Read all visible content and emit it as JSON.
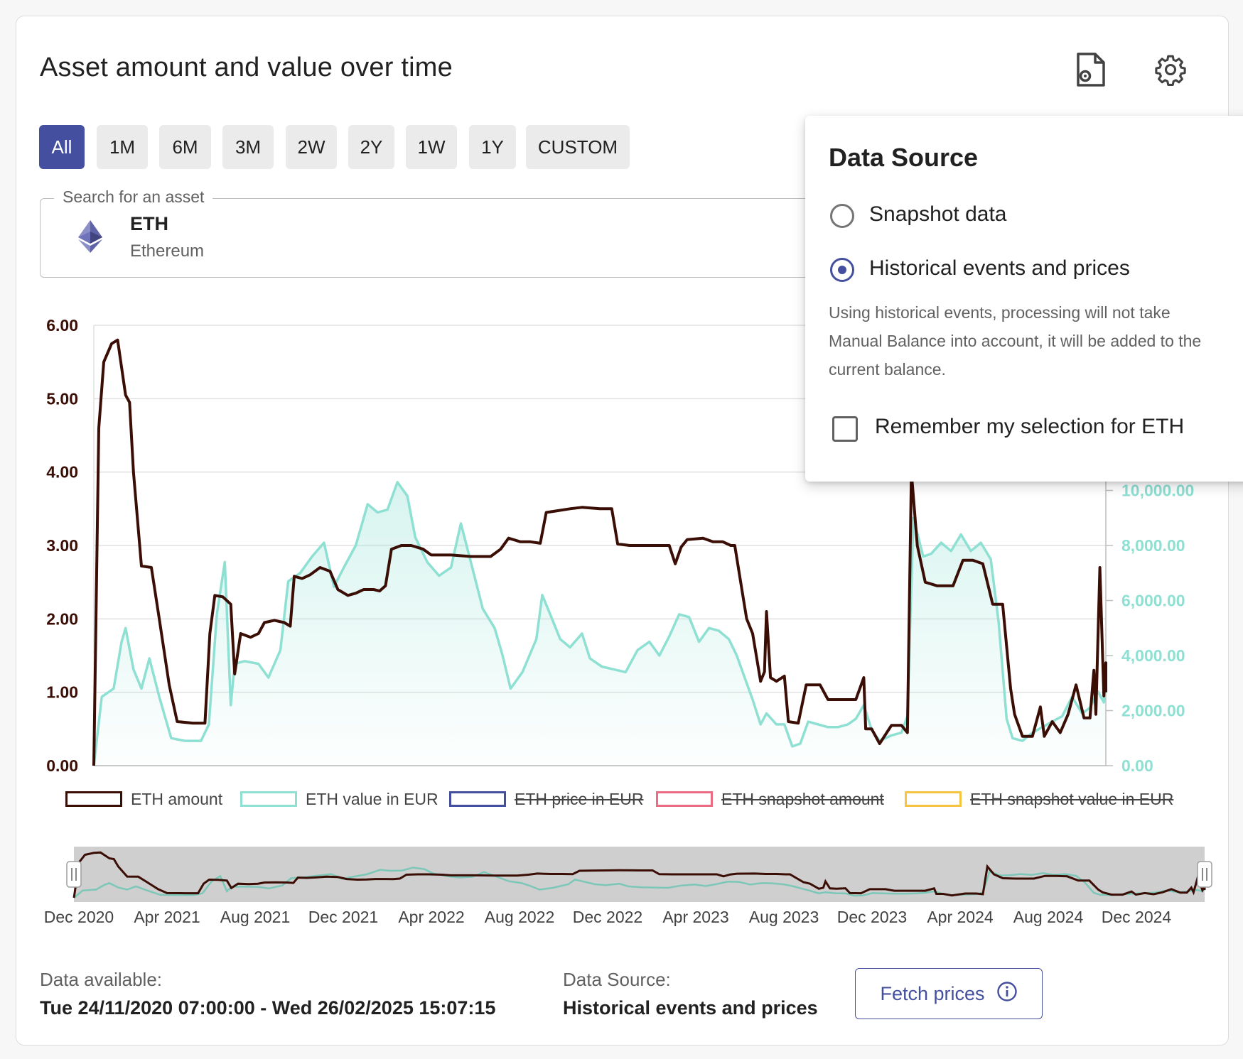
{
  "card": {
    "title": "Asset amount and value over time",
    "icons": {
      "export": "file-settings-icon",
      "settings": "gear-icon"
    }
  },
  "ranges": [
    {
      "label": "All",
      "active": true
    },
    {
      "label": "1M",
      "active": false
    },
    {
      "label": "6M",
      "active": false
    },
    {
      "label": "3M",
      "active": false
    },
    {
      "label": "2W",
      "active": false
    },
    {
      "label": "2Y",
      "active": false
    },
    {
      "label": "1W",
      "active": false
    },
    {
      "label": "1Y",
      "active": false
    },
    {
      "label": "CUSTOM",
      "active": false
    }
  ],
  "search": {
    "label": "Search for an asset",
    "asset_symbol": "ETH",
    "asset_name": "Ethereum",
    "asset_icon": "ethereum-icon"
  },
  "popup": {
    "title": "Data Source",
    "options": [
      {
        "label": "Snapshot data",
        "selected": false
      },
      {
        "label": "Historical events and prices",
        "selected": true
      }
    ],
    "hint": "Using historical events, processing will not take Manual Balance into account, it will be added to the current balance.",
    "remember_label": "Remember my selection for ETH",
    "remember_checked": false
  },
  "chart_data": {
    "type": "line",
    "left_axis_ticks": [
      "0.00",
      "1.00",
      "2.00",
      "3.00",
      "4.00",
      "5.00",
      "6.00"
    ],
    "right_axis_ticks": [
      "0.00",
      "2,000.00",
      "4,000.00",
      "6,000.00",
      "8,000.00",
      "10,000.00"
    ],
    "ylim_left": [
      0,
      6
    ],
    "ylim_right": [
      0,
      16000
    ],
    "x_ticks": [
      "Dec 2020",
      "Apr 2021",
      "Aug 2021",
      "Dec 2021",
      "Apr 2022",
      "Aug 2022",
      "Dec 2022",
      "Apr 2023",
      "Aug 2023",
      "Dec 2023",
      "Apr 2024",
      "Aug 2024",
      "Dec 2024"
    ],
    "x_domain": [
      0,
      51
    ],
    "series": [
      {
        "name": "ETH amount",
        "color": "#3a0d05",
        "axis": "left",
        "visible": true,
        "points": [
          [
            0,
            0
          ],
          [
            0.25,
            4.6
          ],
          [
            0.5,
            5.5
          ],
          [
            0.9,
            5.75
          ],
          [
            1.2,
            5.8
          ],
          [
            1.6,
            5.05
          ],
          [
            1.8,
            4.95
          ],
          [
            2.0,
            4.0
          ],
          [
            2.4,
            2.72
          ],
          [
            2.9,
            2.7
          ],
          [
            3.3,
            2.0
          ],
          [
            3.8,
            1.1
          ],
          [
            4.2,
            0.6
          ],
          [
            5.0,
            0.58
          ],
          [
            5.6,
            0.58
          ],
          [
            5.85,
            1.8
          ],
          [
            6.1,
            2.32
          ],
          [
            6.5,
            2.3
          ],
          [
            6.9,
            2.2
          ],
          [
            7.1,
            1.25
          ],
          [
            7.4,
            1.8
          ],
          [
            7.9,
            1.75
          ],
          [
            8.3,
            1.8
          ],
          [
            8.6,
            1.95
          ],
          [
            9.1,
            1.98
          ],
          [
            9.6,
            1.95
          ],
          [
            9.9,
            1.9
          ],
          [
            10.1,
            2.58
          ],
          [
            10.5,
            2.55
          ],
          [
            10.9,
            2.6
          ],
          [
            11.4,
            2.7
          ],
          [
            11.9,
            2.65
          ],
          [
            12.3,
            2.4
          ],
          [
            12.8,
            2.32
          ],
          [
            13.2,
            2.35
          ],
          [
            13.6,
            2.4
          ],
          [
            14.1,
            2.4
          ],
          [
            14.4,
            2.38
          ],
          [
            14.7,
            2.45
          ],
          [
            15.0,
            2.95
          ],
          [
            15.5,
            3.0
          ],
          [
            16.0,
            3.0
          ],
          [
            16.6,
            2.95
          ],
          [
            17.0,
            2.87
          ],
          [
            18.0,
            2.87
          ],
          [
            19.0,
            2.85
          ],
          [
            20.0,
            2.85
          ],
          [
            20.5,
            2.95
          ],
          [
            20.9,
            3.1
          ],
          [
            21.5,
            3.05
          ],
          [
            22.0,
            3.05
          ],
          [
            22.5,
            3.03
          ],
          [
            22.8,
            3.45
          ],
          [
            23.3,
            3.47
          ],
          [
            24.0,
            3.5
          ],
          [
            24.6,
            3.52
          ],
          [
            25.5,
            3.5
          ],
          [
            26.1,
            3.5
          ],
          [
            26.4,
            3.02
          ],
          [
            27.0,
            3.0
          ],
          [
            28.0,
            3.0
          ],
          [
            29.0,
            3.0
          ],
          [
            29.3,
            2.75
          ],
          [
            29.6,
            2.98
          ],
          [
            29.9,
            3.08
          ],
          [
            30.7,
            3.1
          ],
          [
            31.2,
            3.05
          ],
          [
            31.7,
            3.05
          ],
          [
            32.1,
            3.0
          ],
          [
            32.3,
            3.0
          ],
          [
            32.6,
            2.5
          ],
          [
            32.9,
            2.0
          ],
          [
            33.2,
            1.8
          ],
          [
            33.6,
            1.15
          ],
          [
            33.8,
            1.28
          ],
          [
            33.9,
            2.1
          ],
          [
            34.1,
            1.2
          ],
          [
            34.4,
            1.15
          ],
          [
            34.8,
            1.22
          ],
          [
            35.0,
            0.6
          ],
          [
            35.5,
            0.58
          ],
          [
            35.9,
            1.1
          ],
          [
            36.6,
            1.1
          ],
          [
            37.0,
            0.9
          ],
          [
            37.5,
            0.9
          ],
          [
            38.0,
            0.9
          ],
          [
            38.4,
            0.9
          ],
          [
            38.8,
            1.2
          ],
          [
            38.9,
            0.5
          ],
          [
            39.2,
            0.5
          ],
          [
            39.6,
            0.3
          ],
          [
            40.2,
            0.55
          ],
          [
            40.7,
            0.55
          ],
          [
            41.0,
            0.45
          ],
          [
            41.2,
            4.0
          ],
          [
            41.5,
            3.0
          ],
          [
            41.9,
            2.5
          ],
          [
            42.5,
            2.45
          ],
          [
            43.3,
            2.45
          ],
          [
            43.8,
            2.8
          ],
          [
            44.3,
            2.8
          ],
          [
            44.8,
            2.75
          ],
          [
            45.3,
            2.2
          ],
          [
            45.8,
            2.2
          ],
          [
            46.2,
            1.05
          ],
          [
            46.4,
            0.7
          ],
          [
            46.8,
            0.4
          ],
          [
            47.3,
            0.4
          ],
          [
            47.7,
            0.8
          ],
          [
            47.9,
            0.4
          ],
          [
            48.3,
            0.6
          ],
          [
            48.7,
            0.45
          ],
          [
            49.1,
            0.7
          ],
          [
            49.5,
            1.1
          ],
          [
            49.9,
            0.65
          ],
          [
            50.2,
            0.65
          ],
          [
            50.4,
            1.3
          ],
          [
            50.5,
            0.7
          ],
          [
            50.7,
            2.7
          ],
          [
            50.9,
            0.95
          ],
          [
            51.0,
            1.4
          ],
          [
            51.0,
            1.0
          ]
        ]
      },
      {
        "name": "ETH value in EUR",
        "color": "#8ee0d3",
        "axis": "right",
        "visible": true,
        "points": [
          [
            0,
            0
          ],
          [
            0.4,
            2500
          ],
          [
            1.0,
            2800
          ],
          [
            1.4,
            4500
          ],
          [
            1.6,
            5000
          ],
          [
            2.0,
            3500
          ],
          [
            2.4,
            2800
          ],
          [
            2.8,
            3900
          ],
          [
            3.3,
            2500
          ],
          [
            3.9,
            1000
          ],
          [
            4.6,
            900
          ],
          [
            5.4,
            900
          ],
          [
            5.8,
            1500
          ],
          [
            6.2,
            5500
          ],
          [
            6.6,
            7400
          ],
          [
            6.9,
            2200
          ],
          [
            7.1,
            3700
          ],
          [
            7.6,
            3800
          ],
          [
            8.3,
            3700
          ],
          [
            8.8,
            3200
          ],
          [
            9.4,
            4200
          ],
          [
            9.8,
            6700
          ],
          [
            10.4,
            7000
          ],
          [
            11.0,
            7600
          ],
          [
            11.6,
            8100
          ],
          [
            12.1,
            6500
          ],
          [
            12.6,
            7200
          ],
          [
            13.2,
            8000
          ],
          [
            13.8,
            9500
          ],
          [
            14.3,
            9200
          ],
          [
            14.8,
            9300
          ],
          [
            15.3,
            10300
          ],
          [
            15.8,
            9800
          ],
          [
            16.2,
            8300
          ],
          [
            16.8,
            7400
          ],
          [
            17.4,
            6900
          ],
          [
            18.0,
            7200
          ],
          [
            18.5,
            8800
          ],
          [
            19.0,
            7400
          ],
          [
            19.6,
            5700
          ],
          [
            20.2,
            5000
          ],
          [
            20.6,
            4000
          ],
          [
            21.0,
            2800
          ],
          [
            21.6,
            3400
          ],
          [
            22.3,
            4600
          ],
          [
            22.6,
            6200
          ],
          [
            23.0,
            5500
          ],
          [
            23.5,
            4600
          ],
          [
            24.0,
            4300
          ],
          [
            24.6,
            4800
          ],
          [
            25.0,
            3900
          ],
          [
            25.6,
            3600
          ],
          [
            26.2,
            3500
          ],
          [
            26.8,
            3400
          ],
          [
            27.4,
            4200
          ],
          [
            28.0,
            4500
          ],
          [
            28.5,
            4000
          ],
          [
            29.0,
            4700
          ],
          [
            29.5,
            5500
          ],
          [
            30.0,
            5400
          ],
          [
            30.5,
            4500
          ],
          [
            31.0,
            5000
          ],
          [
            31.5,
            4900
          ],
          [
            32.0,
            4600
          ],
          [
            32.4,
            4000
          ],
          [
            32.8,
            3200
          ],
          [
            33.2,
            2400
          ],
          [
            33.6,
            1500
          ],
          [
            33.9,
            1900
          ],
          [
            34.4,
            1500
          ],
          [
            34.8,
            1500
          ],
          [
            35.2,
            700
          ],
          [
            35.6,
            800
          ],
          [
            36.0,
            1600
          ],
          [
            36.5,
            1500
          ],
          [
            37.0,
            1400
          ],
          [
            37.5,
            1400
          ],
          [
            38.0,
            1500
          ],
          [
            38.4,
            1700
          ],
          [
            38.8,
            2200
          ],
          [
            39.2,
            1300
          ],
          [
            39.6,
            900
          ],
          [
            40.2,
            1100
          ],
          [
            40.7,
            1200
          ],
          [
            41.0,
            1800
          ],
          [
            41.3,
            9000
          ],
          [
            41.8,
            7600
          ],
          [
            42.2,
            7700
          ],
          [
            42.7,
            8100
          ],
          [
            43.2,
            7800
          ],
          [
            43.7,
            8400
          ],
          [
            44.2,
            7800
          ],
          [
            44.7,
            8100
          ],
          [
            45.2,
            7500
          ],
          [
            45.6,
            5200
          ],
          [
            46.0,
            1700
          ],
          [
            46.3,
            1000
          ],
          [
            46.8,
            900
          ],
          [
            47.3,
            1200
          ],
          [
            47.8,
            1400
          ],
          [
            48.3,
            1600
          ],
          [
            48.8,
            1800
          ],
          [
            49.3,
            2500
          ],
          [
            49.8,
            1900
          ],
          [
            50.2,
            2100
          ],
          [
            50.6,
            2700
          ],
          [
            50.9,
            2300
          ],
          [
            51.0,
            2900
          ]
        ]
      },
      {
        "name": "ETH price in EUR",
        "color": "#44509f",
        "visible": false
      },
      {
        "name": "ETH snapshot amount",
        "color": "#ec6b84",
        "visible": false
      },
      {
        "name": "ETH snapshot value in EUR",
        "color": "#f5c542",
        "visible": false
      }
    ]
  },
  "footer": {
    "available_label": "Data available:",
    "available_value": "Tue 24/11/2020 07:00:00 - Wed 26/02/2025 15:07:15",
    "source_label": "Data Source:",
    "source_value": "Historical events and prices",
    "fetch_label": "Fetch prices",
    "fetch_icon": "info-icon"
  }
}
